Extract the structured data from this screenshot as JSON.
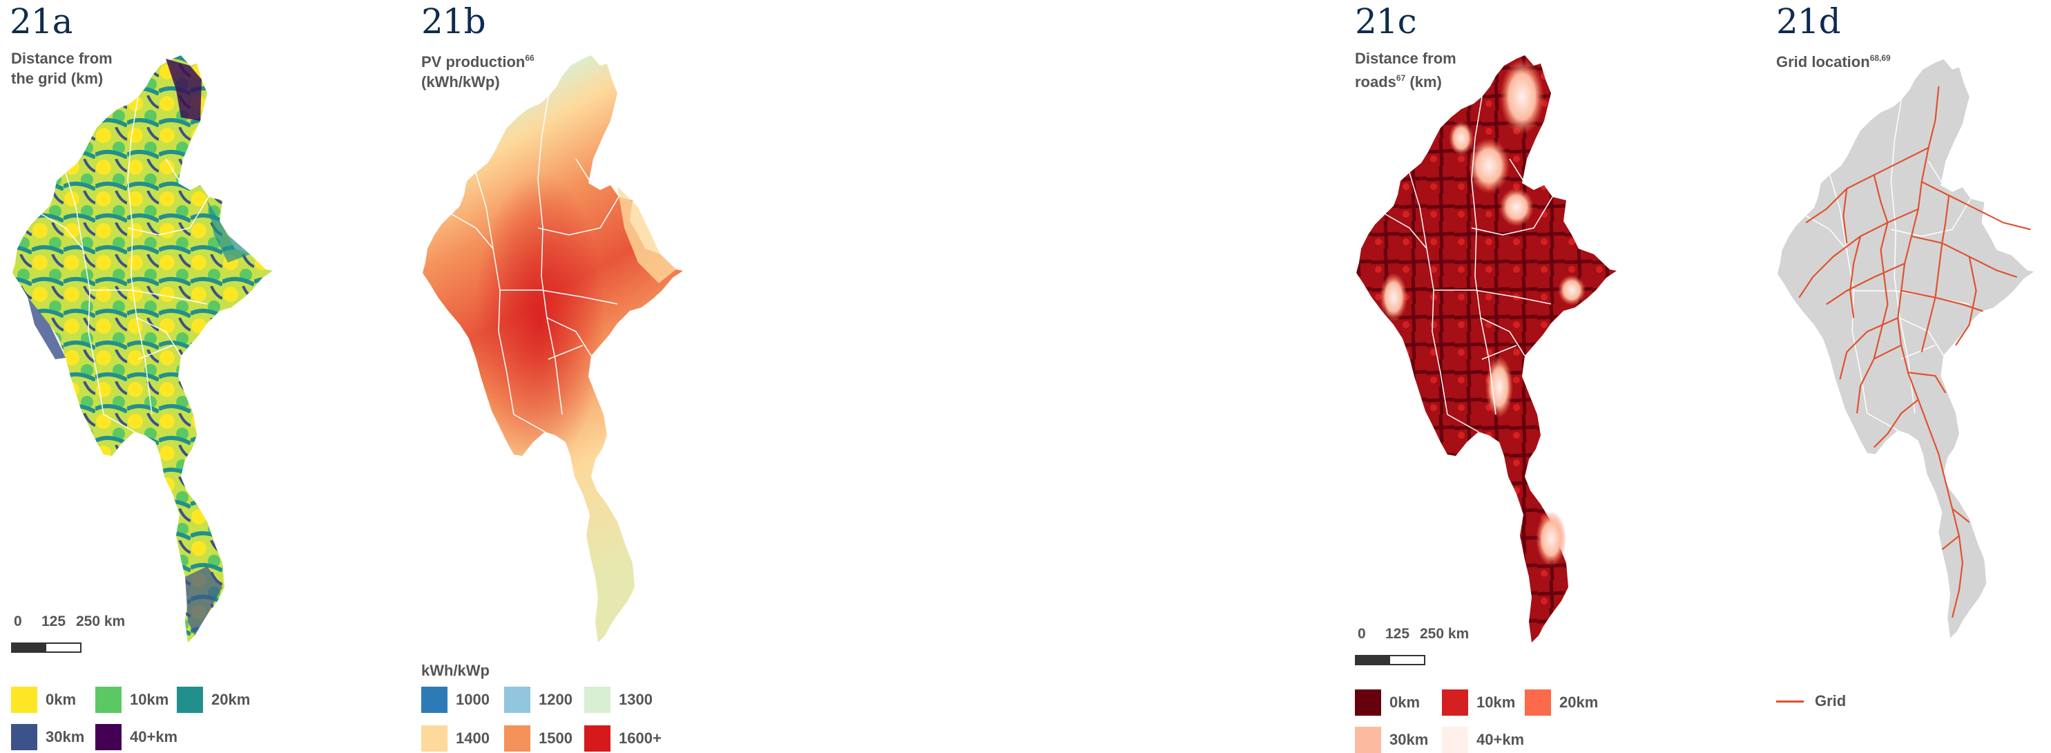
{
  "panels": [
    {
      "id": "21a",
      "title": "Distance from\nthe grid (km)",
      "legend": [
        {
          "label": "0km",
          "color": "#fde725"
        },
        {
          "label": "10km",
          "color": "#5cc863"
        },
        {
          "label": "20km",
          "color": "#21908d"
        },
        {
          "label": "30km",
          "color": "#3b528b"
        },
        {
          "label": "40+km",
          "color": "#440154"
        }
      ]
    },
    {
      "id": "21b",
      "title": "PV production",
      "title_sup": "66",
      "title_line2": "(kWh/kWp)",
      "legend_title": "kWh/kWp",
      "legend": [
        {
          "label": "1000",
          "color": "#2c7bb6"
        },
        {
          "label": "1200",
          "color": "#92c5de"
        },
        {
          "label": "1300",
          "color": "#d9efd3"
        },
        {
          "label": "1400",
          "color": "#fdd99b"
        },
        {
          "label": "1500",
          "color": "#f4915a"
        },
        {
          "label": "1600+",
          "color": "#d7191c"
        }
      ]
    },
    {
      "id": "21c",
      "title": "Distance from",
      "title_line2": "roads",
      "title_sup": "67",
      "title_line2b": " (km)",
      "legend": [
        {
          "label": "0km",
          "color": "#67000d"
        },
        {
          "label": "10km",
          "color": "#d42020"
        },
        {
          "label": "20km",
          "color": "#fb6a4a"
        },
        {
          "label": "30km",
          "color": "#fcbba1"
        },
        {
          "label": "40+km",
          "color": "#fff0ec"
        }
      ]
    },
    {
      "id": "21d",
      "title": "Grid location",
      "title_sup": "68,69",
      "legend": [
        {
          "label": "Grid",
          "color": "#e0502d"
        }
      ]
    }
  ],
  "scale": {
    "t0": "0",
    "t1": "125",
    "t2": "250 km"
  }
}
